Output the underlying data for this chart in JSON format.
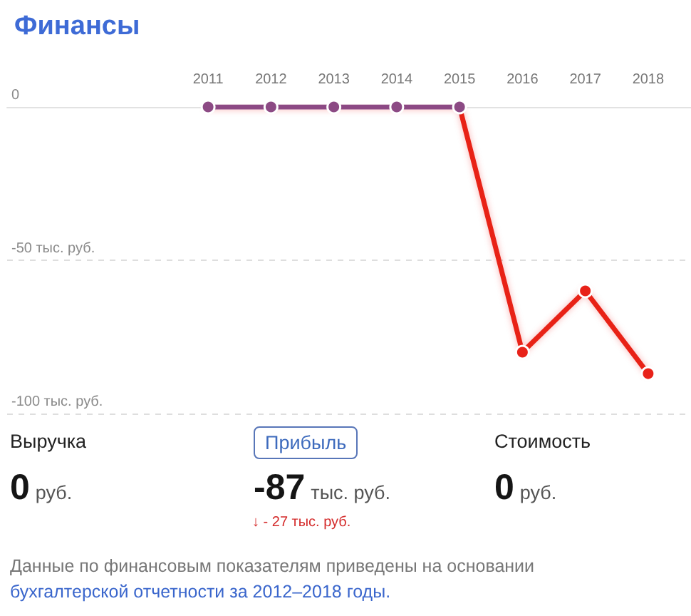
{
  "chart_data": {
    "type": "line",
    "title": "Финансы",
    "categories": [
      "2011",
      "2012",
      "2013",
      "2014",
      "2015",
      "2016",
      "2017",
      "2018"
    ],
    "values": [
      0,
      0,
      0,
      0,
      0,
      -80,
      -60,
      -87
    ],
    "colors": [
      "#8c4a84",
      "#8c4a84",
      "#8c4a84",
      "#8c4a84",
      "#8c4a84",
      "#e82219",
      "#e82219",
      "#e82219"
    ],
    "ylim": [
      -100,
      0
    ],
    "yticks": [
      0,
      {
        "value": -50,
        "label": "-50 тыс. руб."
      },
      {
        "value": -100,
        "label": "-100 тыс. руб."
      }
    ],
    "grid": "y",
    "marker": "circle",
    "line_style": "solid",
    "annotations": [
      "Выручка",
      "0 руб.",
      "Прибыль",
      "-87 тыс. руб.",
      "↓ - 27 тыс. руб.",
      "Стоимость",
      "0 руб.",
      "Данные по финансовым показателям приведены на основании",
      "бухгалтерской отчетности за 2012–2018 годы."
    ]
  }
}
